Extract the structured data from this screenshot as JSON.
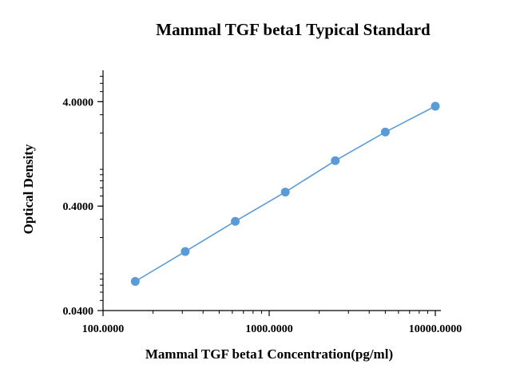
{
  "chart_data": {
    "type": "line",
    "title": "Mammal TGF beta1 Typical Standard",
    "xlabel": "Mammal TGF beta1 Concentration(pg/ml)",
    "ylabel": "Optical Density",
    "xscale": "log",
    "yscale": "log",
    "xlim": [
      100,
      10000
    ],
    "ylim": [
      0.04,
      8
    ],
    "x_ticks": [
      {
        "value": 100,
        "label": "100.0000"
      },
      {
        "value": 1000,
        "label": "1000.0000"
      },
      {
        "value": 10000,
        "label": "10000.0000"
      }
    ],
    "y_ticks": [
      {
        "value": 0.04,
        "label": "0.0400"
      },
      {
        "value": 0.4,
        "label": "0.4000"
      },
      {
        "value": 4,
        "label": "4.0000"
      }
    ],
    "grid": false,
    "legend": "none",
    "series": [
      {
        "color": "#5b9bd5",
        "x": [
          156.25,
          312.5,
          625,
          1250,
          2500,
          5000,
          10000
        ],
        "y": [
          0.076,
          0.147,
          0.286,
          0.545,
          1.09,
          2.05,
          3.62
        ]
      }
    ]
  }
}
